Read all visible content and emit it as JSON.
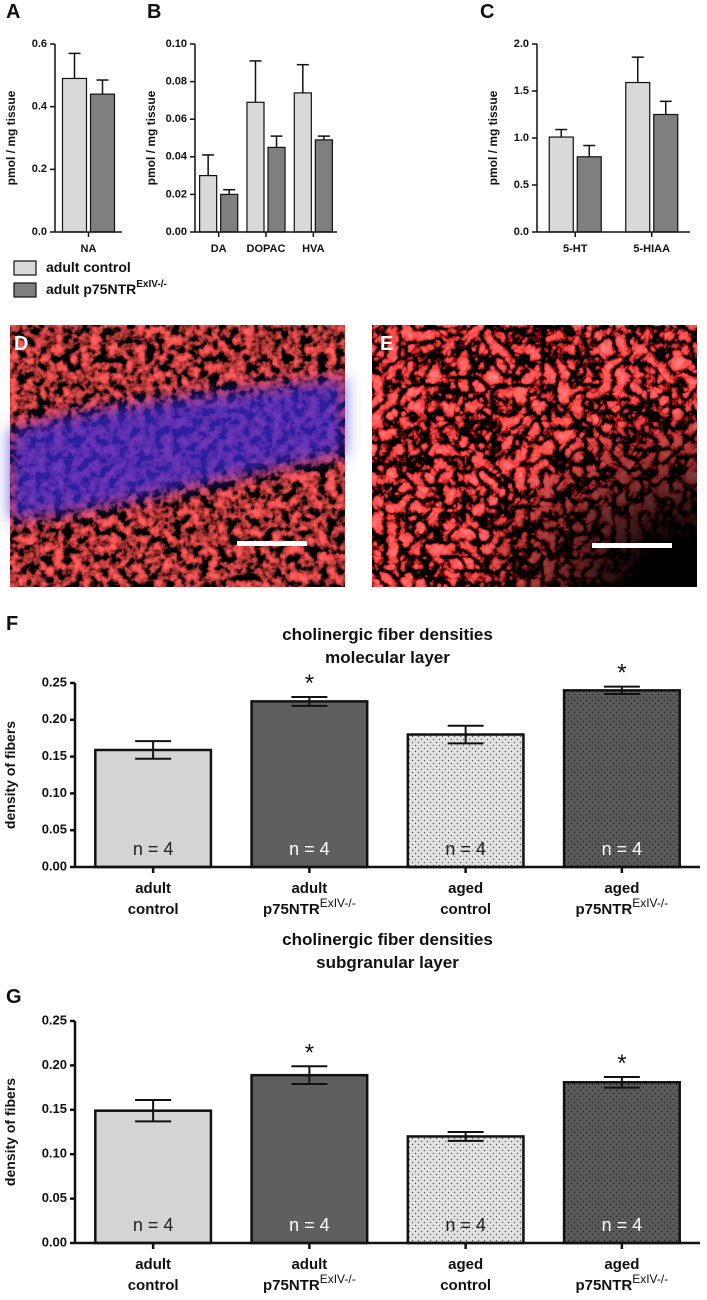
{
  "chart_data": [
    {
      "panel": "A",
      "type": "bar",
      "ylabel": "pmol / mg tissue",
      "categories": [
        "NA"
      ],
      "legend": true,
      "series": [
        {
          "name": "adult control",
          "color": "#d9d9d9",
          "values": [
            0.49
          ],
          "errors": [
            0.08
          ]
        },
        {
          "name": "adult p75NTR",
          "name_sup": "ExIV-/-",
          "color": "#7f7f7f",
          "values": [
            0.44
          ],
          "errors": [
            0.045
          ]
        }
      ],
      "ylim": [
        0,
        0.6
      ],
      "yticks": [
        {
          "value": 0,
          "label": "0.0"
        },
        0.2,
        0.4,
        0.6
      ]
    },
    {
      "panel": "B",
      "type": "bar",
      "ylabel": "pmol / mg tissue",
      "categories": [
        "DA",
        "DOPAC",
        "HVA"
      ],
      "series": [
        {
          "color": "#d9d9d9",
          "values": [
            0.03,
            0.069,
            0.074
          ],
          "errors": [
            0.011,
            0.022,
            0.015
          ]
        },
        {
          "color": "#7f7f7f",
          "values": [
            0.02,
            0.045,
            0.049
          ],
          "errors": [
            0.0025,
            0.006,
            0.002
          ]
        }
      ],
      "ylim": [
        0,
        0.1
      ],
      "yticks": [
        {
          "value": 0,
          "label": "0.00"
        },
        0.02,
        0.04,
        0.06,
        0.08,
        {
          "value": 0.1,
          "label": "0.10"
        }
      ]
    },
    {
      "panel": "C",
      "type": "bar",
      "ylabel": "pmol / mg tissue",
      "categories": [
        "5-HT",
        "5-HIAA"
      ],
      "series": [
        {
          "color": "#d9d9d9",
          "values": [
            1.01,
            1.59
          ],
          "errors": [
            0.08,
            0.27
          ]
        },
        {
          "color": "#7f7f7f",
          "values": [
            0.8,
            1.25
          ],
          "errors": [
            0.12,
            0.14
          ]
        }
      ],
      "ylim": [
        0,
        2
      ],
      "yticks": [
        {
          "value": 0,
          "label": "0.0"
        },
        0.5,
        {
          "value": 1,
          "label": "1.0"
        },
        1.5,
        {
          "value": 2,
          "label": "2.0"
        }
      ]
    },
    {
      "panel": "F",
      "type": "bar",
      "title": [
        "cholinergic fiber  densities",
        "molecular layer"
      ],
      "ylabel": "density of fibers",
      "categories": [
        [
          "adult",
          "control"
        ],
        [
          "adult",
          "p75NTR"
        ],
        [
          "aged",
          "control"
        ],
        [
          "aged",
          "p75NTR"
        ]
      ],
      "category_sups": [
        null,
        "ExIV-/-",
        null,
        "ExIV-/-"
      ],
      "values": [
        0.159,
        0.225,
        0.18,
        0.24
      ],
      "errors": [
        0.012,
        0.006,
        0.012,
        0.005
      ],
      "colors": [
        "#d4d4d4",
        "#5f5f5f",
        "#e2e2e2",
        "#5a5a5a"
      ],
      "patterns": [
        null,
        null,
        "dots",
        "dots"
      ],
      "annotations": [
        "n = 4",
        "n = 4",
        "n = 4",
        "n = 4"
      ],
      "significance": [
        null,
        "*",
        null,
        "*"
      ],
      "ylim": [
        0,
        0.25
      ],
      "yticks": [
        {
          "value": 0,
          "label": "0.00"
        },
        0.05,
        {
          "value": 0.1,
          "label": "0.10"
        },
        0.15,
        {
          "value": 0.2,
          "label": "0.20"
        },
        0.25
      ]
    },
    {
      "panel": "G",
      "type": "bar",
      "title": [
        "cholinergic fiber densities",
        "subgranular layer"
      ],
      "ylabel": "density of fibers",
      "categories": [
        [
          "adult",
          "control"
        ],
        [
          "adult",
          "p75NTR"
        ],
        [
          "aged",
          "control"
        ],
        [
          "aged",
          "p75NTR"
        ]
      ],
      "category_sups": [
        null,
        "ExIV-/-",
        null,
        "ExIV-/-"
      ],
      "values": [
        0.149,
        0.189,
        0.12,
        0.181
      ],
      "errors": [
        0.012,
        0.01,
        0.005,
        0.006
      ],
      "colors": [
        "#d4d4d4",
        "#5f5f5f",
        "#e2e2e2",
        "#5a5a5a"
      ],
      "patterns": [
        null,
        null,
        "dots",
        "dots"
      ],
      "annotations": [
        "n = 4",
        "n = 4",
        "n = 4",
        "n = 4"
      ],
      "significance": [
        null,
        "*",
        null,
        "*"
      ],
      "ylim": [
        0,
        0.25
      ],
      "yticks": [
        {
          "value": 0,
          "label": "0.00"
        },
        0.05,
        {
          "value": 0.1,
          "label": "0.10"
        },
        0.15,
        {
          "value": 0.2,
          "label": "0.20"
        },
        0.25
      ]
    }
  ],
  "images": [
    {
      "panel": "D"
    },
    {
      "panel": "E"
    }
  ]
}
